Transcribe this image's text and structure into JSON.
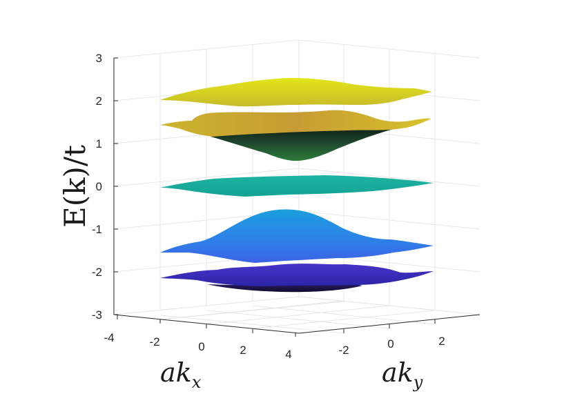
{
  "chart_data": {
    "type": "surface",
    "title": "",
    "zlabel": "E(k)/t",
    "xlabel": {
      "base": "ak",
      "sub": "x"
    },
    "ylabel": {
      "base": "ak",
      "sub": "y"
    },
    "x_ticks": [
      -4,
      -2,
      0,
      2,
      4
    ],
    "y_ticks": [
      -2,
      0,
      2
    ],
    "z_ticks": [
      -3,
      -2,
      -1,
      0,
      1,
      2,
      3
    ],
    "xlim": [
      -4.2,
      4.2
    ],
    "ylim": [
      -3.2,
      3.2
    ],
    "zlim": [
      -3,
      3
    ],
    "grid": true,
    "colormap": "parula",
    "bands": [
      {
        "center": 2.2,
        "amplitude": 0.35
      },
      {
        "center": 1.35,
        "amplitude": -0.65
      },
      {
        "center": 0.0,
        "amplitude": 0.0
      },
      {
        "center": -1.35,
        "amplitude": 0.65
      },
      {
        "center": -2.2,
        "amplitude": -0.3
      }
    ],
    "colors": {
      "band_top": "#d9d81d",
      "band_upper": "#c6b32c",
      "band_flat": "#19ac9c",
      "band_lower": "#2f82e6",
      "band_bottom": "#3c32bf",
      "dark": "#142b25"
    }
  }
}
